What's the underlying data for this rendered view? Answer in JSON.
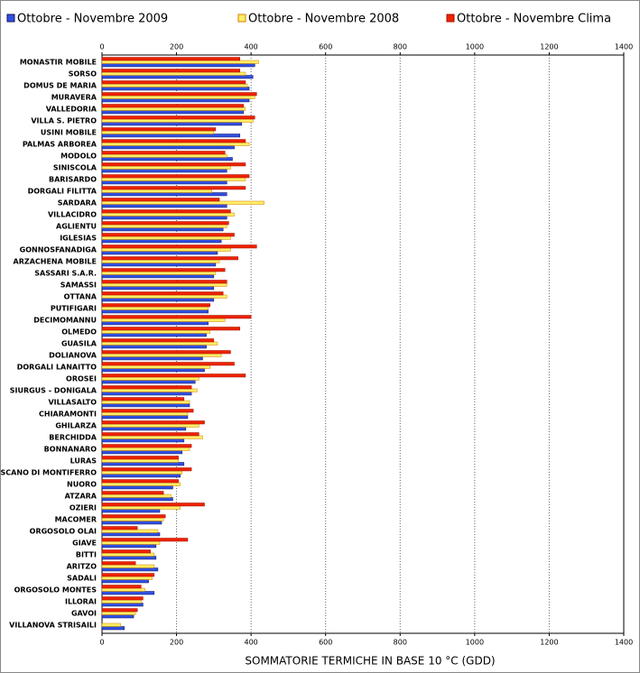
{
  "chart_data": {
    "type": "hbar",
    "xlabel": "SOMMATORIE TERMICHE IN BASE 10 °C (GDD)",
    "categories": [
      "MONASTIR MOBILE",
      "SORSO",
      "DOMUS DE MARIA",
      "MURAVERA",
      "VALLEDORIA",
      "VILLA S. PIETRO",
      "USINI MOBILE",
      "PALMAS ARBOREA",
      "MODOLO",
      "SINISCOLA",
      "BARISARDO",
      "DORGALI FILITTA",
      "SARDARA",
      "VILLACIDRO",
      "AGLIENTU",
      "IGLESIAS",
      "GONNOSFANADIGA",
      "ARZACHENA MOBILE",
      "SASSARI S.A.R.",
      "SAMASSI",
      "OTTANA",
      "PUTIFIGARI",
      "DECIMOMANNU",
      "OLMEDO",
      "GUASILA",
      "DOLIANOVA",
      "DORGALI LANAITTO",
      "OROSEI",
      "SIURGUS - DONIGALA",
      "VILLASALTO",
      "CHIARAMONTI",
      "GHILARZA",
      "BERCHIDDA",
      "BONNANARO",
      "LURAS",
      "SCANO DI MONTIFERRO",
      "NUORO",
      "ATZARA",
      "OZIERI",
      "MACOMER",
      "ORGOSOLO OLAI",
      "GIAVE",
      "BITTI",
      "ARITZO",
      "SADALI",
      "ORGOSOLO MONTES",
      "ILLORAI",
      "GAVOI",
      "VILLANOVA STRISAILI"
    ],
    "series": [
      {
        "name": "Ottobre - Novembre 2009",
        "color": "#3050e0",
        "values": [
          410,
          405,
          395,
          395,
          380,
          375,
          370,
          355,
          350,
          335,
          335,
          335,
          335,
          335,
          325,
          320,
          310,
          305,
          300,
          300,
          300,
          285,
          285,
          280,
          280,
          270,
          275,
          250,
          240,
          235,
          230,
          225,
          220,
          215,
          220,
          210,
          190,
          190,
          155,
          160,
          155,
          145,
          145,
          150,
          125,
          140,
          110,
          85,
          60
        ]
      },
      {
        "name": "Ottobre - Novembre 2008",
        "color": "#ffee66",
        "values": [
          420,
          385,
          390,
          410,
          385,
          405,
          300,
          395,
          335,
          345,
          385,
          295,
          435,
          355,
          335,
          345,
          345,
          315,
          305,
          335,
          335,
          285,
          330,
          290,
          310,
          320,
          290,
          260,
          255,
          235,
          230,
          260,
          270,
          235,
          205,
          215,
          210,
          185,
          210,
          165,
          150,
          155,
          140,
          140,
          135,
          115,
          105,
          90,
          50
        ]
      },
      {
        "name": "Ottobre - Novembre Clima",
        "color": "#ee2200",
        "values": [
          370,
          370,
          385,
          415,
          380,
          410,
          305,
          385,
          330,
          385,
          395,
          385,
          315,
          345,
          340,
          355,
          415,
          365,
          330,
          335,
          325,
          290,
          400,
          370,
          300,
          345,
          355,
          385,
          240,
          220,
          245,
          275,
          260,
          240,
          205,
          240,
          205,
          165,
          275,
          170,
          95,
          230,
          130,
          90,
          140,
          105,
          110,
          95,
          null
        ]
      }
    ],
    "xlim": [
      0,
      1400
    ],
    "xticks": [
      0,
      200,
      400,
      600,
      800,
      1000,
      1200,
      1400
    ],
    "grid": true
  }
}
